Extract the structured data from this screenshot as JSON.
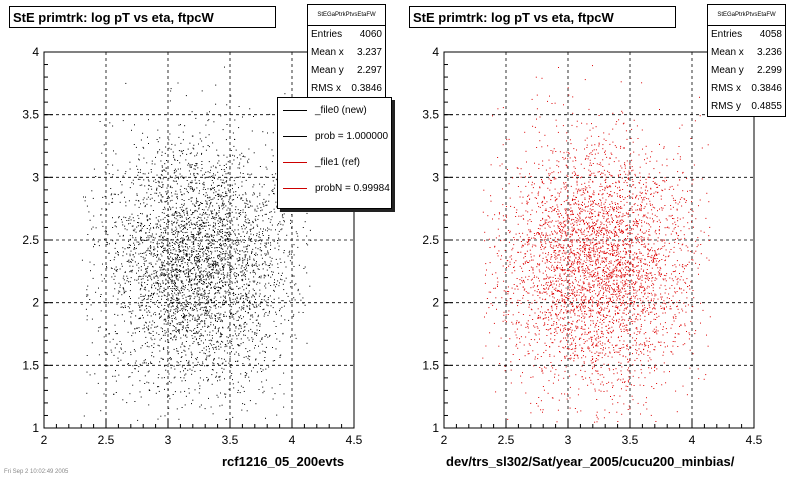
{
  "chart_data": [
    {
      "type": "scatter",
      "title": "StE primtrk: log pT vs eta, ftpcW",
      "xlabel": "rcf1216_05_200evts",
      "xlim": [
        2,
        4.5
      ],
      "ylim": [
        1,
        4
      ],
      "xticks": [
        "2",
        "2.5",
        "3",
        "3.5",
        "4",
        "4.5"
      ],
      "yticks": [
        "1",
        "1.5",
        "2",
        "2.5",
        "3",
        "3.5",
        "4"
      ],
      "grid": true,
      "marker_color": "#000000",
      "stats": {
        "name": "StEGaPtrkPtvsEtaFW",
        "rows": [
          {
            "label": "Entries",
            "value": "4060"
          },
          {
            "label": "Mean x",
            "value": "3.237"
          },
          {
            "label": "Mean y",
            "value": "2.297"
          },
          {
            "label": "RMS x",
            "value": "0.3846"
          }
        ]
      },
      "distribution": {
        "entries": 4060,
        "mean_x": 3.237,
        "mean_y": 2.297,
        "rms_x": 0.3846
      },
      "legend": {
        "placement": "right",
        "entries": [
          {
            "label": "_file0 (new)",
            "color": "#000000"
          },
          {
            "label": "prob = 1.000000",
            "color": "#000000"
          },
          {
            "label": "_file1 (ref)",
            "color": "#cc0000"
          },
          {
            "label": "probN = 0.99984",
            "color": "#cc0000"
          }
        ]
      }
    },
    {
      "type": "scatter",
      "title": "StE primtrk: log pT vs eta, ftpcW",
      "xlabel": "dev/trs_sl302/Sat/year_2005/cucu200_minbias/",
      "xlim": [
        2,
        4.5
      ],
      "ylim": [
        1,
        4
      ],
      "xticks": [
        "2",
        "2.5",
        "3",
        "3.5",
        "4",
        "4.5"
      ],
      "yticks": [
        "1",
        "1.5",
        "2",
        "2.5",
        "3",
        "3.5",
        "4"
      ],
      "grid": true,
      "marker_color": "#dd0000",
      "stats": {
        "name": "StEGaPtrkPtvsEtaFW",
        "rows": [
          {
            "label": "Entries",
            "value": "4058"
          },
          {
            "label": "Mean x",
            "value": "3.236"
          },
          {
            "label": "Mean y",
            "value": "2.299"
          },
          {
            "label": "RMS x",
            "value": "0.3846"
          },
          {
            "label": "RMS y",
            "value": "0.4855"
          }
        ]
      },
      "distribution": {
        "entries": 4058,
        "mean_x": 3.236,
        "mean_y": 2.299,
        "rms_x": 0.3846,
        "rms_y": 0.4855
      }
    }
  ],
  "footer_note": "Fri Sep 2 10:02:49 2005"
}
